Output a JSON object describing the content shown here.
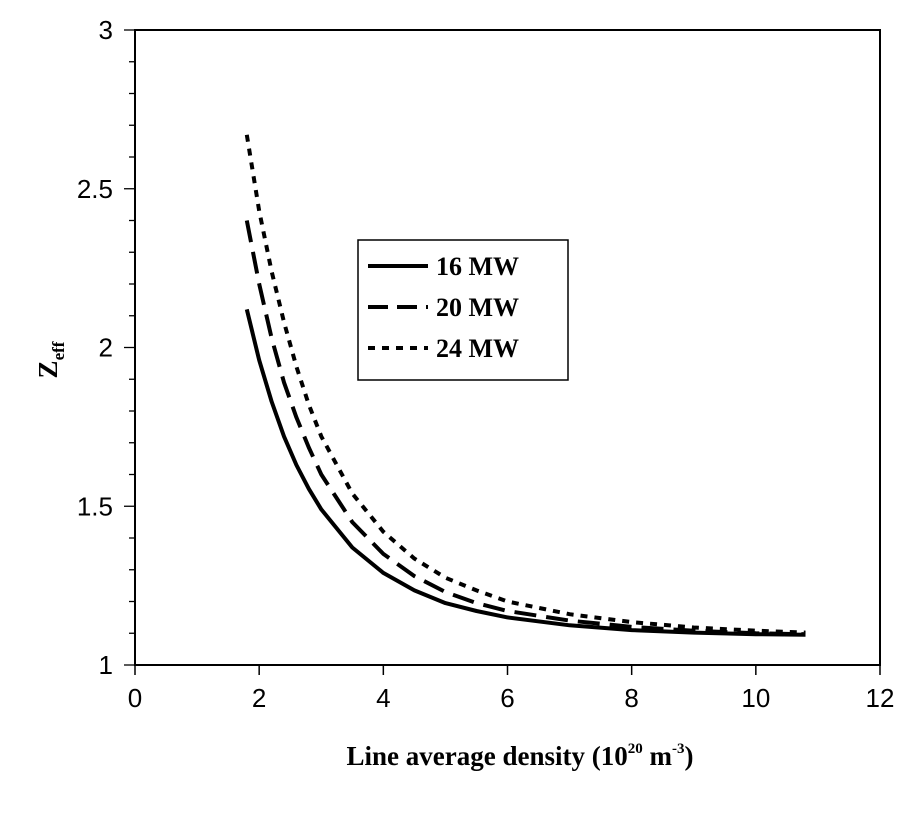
{
  "chart_data": {
    "type": "line",
    "xlabel_main": "Line average density (10",
    "xlabel_exp1": "20",
    "xlabel_mid": " m",
    "xlabel_exp2": "-3",
    "xlabel_end": ")",
    "ylabel_main": "Z",
    "ylabel_sub": "eff",
    "xlim": [
      0,
      12
    ],
    "ylim": [
      1,
      3
    ],
    "x_ticks": [
      0,
      2,
      4,
      6,
      8,
      10,
      12
    ],
    "x_tick_labels": [
      "0",
      "2",
      "4",
      "6",
      "8",
      "10",
      "12"
    ],
    "y_ticks": [
      1,
      1.5,
      2,
      2.5,
      3
    ],
    "y_tick_labels": [
      "1",
      "1.5",
      "2",
      "2.5",
      "3"
    ],
    "grid": false,
    "legend_position": "center",
    "series": [
      {
        "name": "16 MW",
        "style": "solid",
        "color": "#000000",
        "x": [
          1.8,
          2.0,
          2.2,
          2.4,
          2.6,
          2.8,
          3.0,
          3.5,
          4.0,
          4.5,
          5.0,
          5.5,
          6.0,
          7.0,
          8.0,
          9.0,
          10.0,
          10.8
        ],
        "y": [
          2.12,
          1.96,
          1.83,
          1.72,
          1.63,
          1.555,
          1.49,
          1.37,
          1.29,
          1.235,
          1.195,
          1.17,
          1.15,
          1.125,
          1.11,
          1.102,
          1.097,
          1.095
        ]
      },
      {
        "name": "20 MW",
        "style": "dashed",
        "color": "#000000",
        "x": [
          1.8,
          2.0,
          2.2,
          2.4,
          2.6,
          2.8,
          3.0,
          3.5,
          4.0,
          4.5,
          5.0,
          5.5,
          6.0,
          7.0,
          8.0,
          9.0,
          10.0,
          10.8
        ],
        "y": [
          2.4,
          2.2,
          2.03,
          1.89,
          1.78,
          1.685,
          1.6,
          1.45,
          1.35,
          1.28,
          1.23,
          1.195,
          1.17,
          1.14,
          1.12,
          1.108,
          1.1,
          1.097
        ]
      },
      {
        "name": "24 MW",
        "style": "dotted",
        "color": "#000000",
        "x": [
          1.8,
          2.0,
          2.2,
          2.4,
          2.6,
          2.8,
          3.0,
          3.5,
          4.0,
          4.5,
          5.0,
          5.5,
          6.0,
          7.0,
          8.0,
          9.0,
          10.0,
          10.8
        ],
        "y": [
          2.67,
          2.43,
          2.24,
          2.08,
          1.94,
          1.82,
          1.72,
          1.54,
          1.42,
          1.335,
          1.275,
          1.235,
          1.2,
          1.16,
          1.135,
          1.118,
          1.108,
          1.102
        ]
      }
    ]
  }
}
